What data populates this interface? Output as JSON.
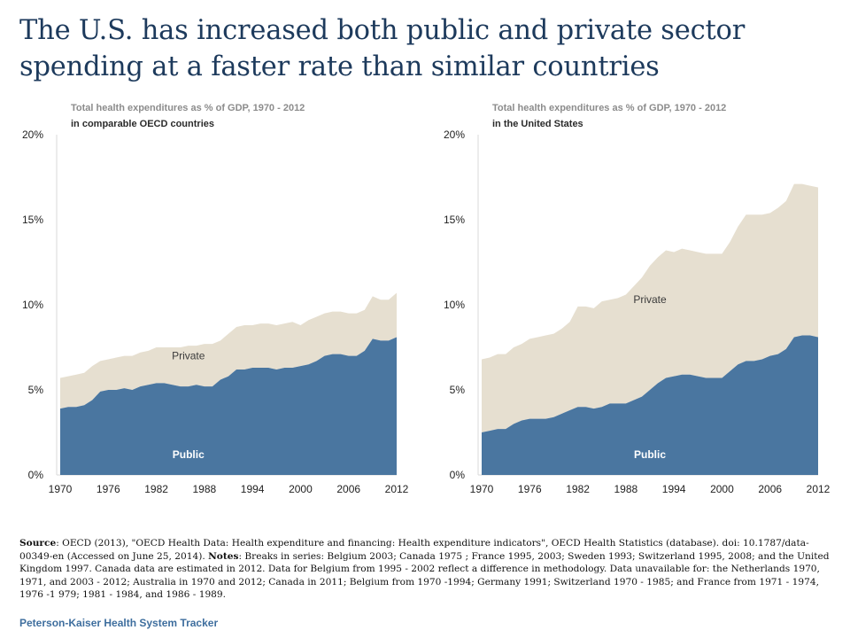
{
  "title": "The U.S. has increased both public and private sector spending at a faster rate than similar countries",
  "colors": {
    "public": "#4a76a0",
    "private": "#e6dfd0",
    "title": "#1d3a5c",
    "brand": "#3e6e9e"
  },
  "footnote": {
    "source_label": "Source",
    "source_text": ": OECD (2013), \"OECD Health Data: Health expenditure and financing: Health expenditure indicators\", OECD Health Statistics (database). doi: 10.1787/data-00349-en (Accessed on June 25, 2014).  ",
    "notes_label": "Notes",
    "notes_text": ":  Breaks in series: Belgium 2003; Canada 1975 ; France 1995, 2003; Sweden 1993; Switzerland 1995, 2008; and the United Kingdom 1997.  Canada data are estimated in 2012.  Data for Belgium from 1995 - 2002 reflect a difference in methodology.  Data unavailable for: the Netherlands 1970, 1971, and 2003 - 2012; Australia in 1970 and 2012; Canada in 2011; Belgium from 1970 -1994; Germany 1991; Switzerland 1970 - 1985; and France from 1971 - 1974, 1976 -1 979; 1981 - 1984, and 1986 - 1989."
  },
  "brand": "Peterson-Kaiser Health System Tracker",
  "chart_data": [
    {
      "type": "area",
      "stacked": true,
      "subtitle_line1": "Total health expenditures as % of GDP, 1970 - 2012",
      "subtitle_line2": "in comparable OECD countries",
      "x": [
        1970,
        1971,
        1972,
        1973,
        1974,
        1975,
        1976,
        1977,
        1978,
        1979,
        1980,
        1981,
        1982,
        1983,
        1984,
        1985,
        1986,
        1987,
        1988,
        1989,
        1990,
        1991,
        1992,
        1993,
        1994,
        1995,
        1996,
        1997,
        1998,
        1999,
        2000,
        2001,
        2002,
        2003,
        2004,
        2005,
        2006,
        2007,
        2008,
        2009,
        2010,
        2011,
        2012
      ],
      "xticks": [
        "1970",
        "1976",
        "1982",
        "1988",
        "1994",
        "2000",
        "2006",
        "2012"
      ],
      "yticks": [
        "0%",
        "5%",
        "10%",
        "15%",
        "20%"
      ],
      "ylim": [
        0,
        20
      ],
      "series": [
        {
          "name": "Public",
          "values": [
            3.9,
            4.0,
            4.0,
            4.1,
            4.4,
            4.9,
            5.0,
            5.0,
            5.1,
            5.0,
            5.2,
            5.3,
            5.4,
            5.4,
            5.3,
            5.2,
            5.2,
            5.3,
            5.2,
            5.2,
            5.6,
            5.8,
            6.2,
            6.2,
            6.3,
            6.3,
            6.3,
            6.2,
            6.3,
            6.3,
            6.4,
            6.5,
            6.7,
            7.0,
            7.1,
            7.1,
            7.0,
            7.0,
            7.3,
            8.0,
            7.9,
            7.9,
            8.1
          ]
        },
        {
          "name": "Private",
          "values": [
            1.8,
            1.8,
            1.9,
            1.9,
            2.0,
            1.8,
            1.8,
            1.9,
            1.9,
            2.0,
            2.0,
            2.0,
            2.1,
            2.1,
            2.2,
            2.3,
            2.4,
            2.3,
            2.5,
            2.5,
            2.3,
            2.5,
            2.5,
            2.6,
            2.5,
            2.6,
            2.6,
            2.6,
            2.6,
            2.7,
            2.4,
            2.6,
            2.6,
            2.5,
            2.5,
            2.5,
            2.5,
            2.5,
            2.4,
            2.5,
            2.4,
            2.4,
            2.6
          ]
        }
      ],
      "series_labels": [
        "Public",
        "Private"
      ]
    },
    {
      "type": "area",
      "stacked": true,
      "subtitle_line1": "Total health expenditures as % of GDP, 1970 - 2012",
      "subtitle_line2": "in the United States",
      "x": [
        1970,
        1971,
        1972,
        1973,
        1974,
        1975,
        1976,
        1977,
        1978,
        1979,
        1980,
        1981,
        1982,
        1983,
        1984,
        1985,
        1986,
        1987,
        1988,
        1989,
        1990,
        1991,
        1992,
        1993,
        1994,
        1995,
        1996,
        1997,
        1998,
        1999,
        2000,
        2001,
        2002,
        2003,
        2004,
        2005,
        2006,
        2007,
        2008,
        2009,
        2010,
        2011,
        2012
      ],
      "xticks": [
        "1970",
        "1976",
        "1982",
        "1988",
        "1994",
        "2000",
        "2006",
        "2012"
      ],
      "yticks": [
        "0%",
        "5%",
        "10%",
        "15%",
        "20%"
      ],
      "ylim": [
        0,
        20
      ],
      "series": [
        {
          "name": "Public",
          "values": [
            2.5,
            2.6,
            2.7,
            2.7,
            3.0,
            3.2,
            3.3,
            3.3,
            3.3,
            3.4,
            3.6,
            3.8,
            4.0,
            4.0,
            3.9,
            4.0,
            4.2,
            4.2,
            4.2,
            4.4,
            4.6,
            5.0,
            5.4,
            5.7,
            5.8,
            5.9,
            5.9,
            5.8,
            5.7,
            5.7,
            5.7,
            6.1,
            6.5,
            6.7,
            6.7,
            6.8,
            7.0,
            7.1,
            7.4,
            8.1,
            8.2,
            8.2,
            8.1
          ]
        },
        {
          "name": "Private",
          "values": [
            4.3,
            4.3,
            4.4,
            4.4,
            4.5,
            4.5,
            4.7,
            4.8,
            4.9,
            4.9,
            5.0,
            5.2,
            5.9,
            5.9,
            5.9,
            6.2,
            6.1,
            6.2,
            6.4,
            6.7,
            7.0,
            7.3,
            7.4,
            7.5,
            7.3,
            7.4,
            7.3,
            7.3,
            7.3,
            7.3,
            7.3,
            7.6,
            8.1,
            8.6,
            8.6,
            8.5,
            8.4,
            8.6,
            8.7,
            9.0,
            8.9,
            8.8,
            8.8
          ]
        }
      ],
      "series_labels": [
        "Public",
        "Private"
      ]
    }
  ]
}
